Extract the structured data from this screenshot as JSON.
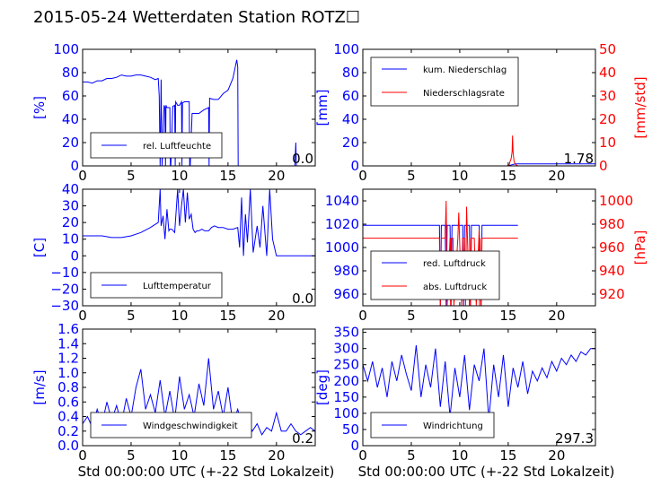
{
  "page": {
    "title": "2015-05-24 Wetterdaten Station ROTZ☐",
    "xlabel_bottom": "Std 00:00:00 UTC (+-22 Std Lokalzeit)"
  },
  "colors": {
    "blue": "#0000ff",
    "red": "#ff0000",
    "axes": "#000000",
    "background": "#ffffff"
  },
  "chart_data": [
    {
      "id": "humidity",
      "type": "line",
      "ylabel": "[%]",
      "xlim": [
        0,
        24
      ],
      "ylim": [
        0,
        100
      ],
      "xticks": [
        "0",
        "5",
        "10",
        "15",
        "20"
      ],
      "xtick_values": [
        0,
        5,
        10,
        15,
        20
      ],
      "yticks": [
        "0",
        "20",
        "40",
        "60",
        "80",
        "100"
      ],
      "ytick_values": [
        0,
        20,
        40,
        60,
        80,
        100
      ],
      "legend": [
        "rel. Luftfeuchte"
      ],
      "legend_position": "bottom-left",
      "annotation": "0.0",
      "series": [
        {
          "axis": "left",
          "color": "#0000ff",
          "x": [
            0,
            0.5,
            1,
            1.5,
            2,
            2.5,
            3,
            3.5,
            4,
            4.5,
            5,
            5.5,
            6,
            6.5,
            7,
            7.5,
            7.8,
            7.9,
            8.0,
            8.1,
            8.2,
            8.4,
            8.5,
            8.55,
            8.6,
            8.7,
            9.0,
            9.05,
            9.1,
            9.3,
            9.5,
            9.55,
            9.6,
            9.8,
            10.0,
            10.2,
            10.25,
            10.3,
            10.5,
            10.7,
            11.0,
            11.05,
            11.1,
            11.3,
            11.5,
            11.8,
            12.0,
            12.5,
            13.0,
            13.05,
            13.1,
            13.5,
            14.0,
            14.5,
            15.0,
            15.5,
            15.9,
            16.0,
            16.05,
            16.1,
            17,
            18,
            19,
            20,
            21,
            21.9,
            22.0,
            22.05,
            22.1,
            23,
            24
          ],
          "y": [
            72,
            72,
            71,
            73,
            73,
            75,
            75,
            76,
            78,
            77,
            77,
            78,
            78,
            77,
            76,
            74,
            75,
            60,
            0,
            74,
            0,
            52,
            50,
            0,
            52,
            50,
            50,
            0,
            0,
            51,
            52,
            0,
            55,
            52,
            52,
            55,
            0,
            54,
            55,
            55,
            55,
            0,
            0,
            45,
            45,
            45,
            45,
            48,
            50,
            0,
            58,
            57,
            57,
            62,
            65,
            75,
            91,
            85,
            0,
            0,
            0,
            0,
            0,
            0,
            0,
            0,
            20,
            0,
            0,
            0,
            0
          ]
        }
      ]
    },
    {
      "id": "precipitation",
      "type": "line",
      "ylabel": "[mm]",
      "ylabel_right": "[mm/std]",
      "xlim": [
        0,
        24
      ],
      "ylim": [
        0,
        100
      ],
      "ylim_right": [
        0,
        50
      ],
      "xticks": [
        "0",
        "5",
        "10",
        "15",
        "20"
      ],
      "xtick_values": [
        0,
        5,
        10,
        15,
        20
      ],
      "yticks": [
        "0",
        "20",
        "40",
        "60",
        "80",
        "100"
      ],
      "ytick_values": [
        0,
        20,
        40,
        60,
        80,
        100
      ],
      "yticks_right": [
        "0",
        "10",
        "20",
        "30",
        "40",
        "50"
      ],
      "ytick_values_right": [
        0,
        10,
        20,
        30,
        40,
        50
      ],
      "legend": [
        "kum. Niederschlag",
        "Niederschlagsrate"
      ],
      "legend_position": "top-left",
      "annotation": "1.78",
      "series": [
        {
          "name": "kum. Niederschlag",
          "axis": "left",
          "color": "#0000ff",
          "x": [
            0,
            15,
            15.2,
            15.4,
            15.6,
            15.8,
            24
          ],
          "y": [
            0,
            0,
            0.5,
            1.0,
            1.5,
            1.78,
            1.78
          ]
        },
        {
          "name": "Niederschlagsrate",
          "axis": "right",
          "color": "#ff0000",
          "x": [
            0,
            14.9,
            15.1,
            15.2,
            15.3,
            15.4,
            15.45,
            15.5,
            15.55,
            15.6,
            15.7,
            15.8,
            16.0,
            24
          ],
          "y": [
            0,
            0,
            0.5,
            2,
            3,
            6,
            13,
            6,
            4,
            2,
            1,
            0.5,
            0,
            0
          ]
        }
      ]
    },
    {
      "id": "temperature",
      "type": "line",
      "ylabel": "[C]",
      "xlim": [
        0,
        24
      ],
      "ylim": [
        -30,
        40
      ],
      "xticks": [
        "0",
        "5",
        "10",
        "15",
        "20"
      ],
      "xtick_values": [
        0,
        5,
        10,
        15,
        20
      ],
      "yticks": [
        "−30",
        "−20",
        "−10",
        "0",
        "10",
        "20",
        "30",
        "40"
      ],
      "ytick_values": [
        -30,
        -20,
        -10,
        0,
        10,
        20,
        30,
        40
      ],
      "legend": [
        "Lufttemperatur"
      ],
      "legend_position": "bottom-left",
      "annotation": "0.0",
      "series": [
        {
          "axis": "left",
          "color": "#0000ff",
          "x": [
            0,
            1,
            2,
            3,
            4,
            5,
            6,
            7,
            7.8,
            8.0,
            8.1,
            8.3,
            8.5,
            8.7,
            8.9,
            9.0,
            9.2,
            9.5,
            9.8,
            10.0,
            10.2,
            10.4,
            10.6,
            10.8,
            11.0,
            11.2,
            11.4,
            11.6,
            11.8,
            12.0,
            12.3,
            12.6,
            13.0,
            13.3,
            13.6,
            14.0,
            14.5,
            15.0,
            15.5,
            16.0,
            16.2,
            16.4,
            16.6,
            16.8,
            17.0,
            17.3,
            17.6,
            18.0,
            18.3,
            18.6,
            19.0,
            19.3,
            19.6,
            20.0,
            20.5,
            21.0,
            22,
            23,
            24
          ],
          "y": [
            12,
            12,
            12,
            11,
            11,
            12,
            14,
            17,
            20,
            40,
            18,
            24,
            10,
            28,
            15,
            16,
            16,
            14,
            40,
            18,
            30,
            40,
            20,
            38,
            22,
            25,
            16,
            14,
            15,
            15,
            16,
            15,
            15,
            17,
            18,
            17,
            17,
            16,
            16,
            17,
            5,
            35,
            0,
            25,
            8,
            40,
            2,
            18,
            5,
            30,
            0,
            40,
            10,
            0,
            0,
            0,
            0,
            0,
            0
          ]
        }
      ]
    },
    {
      "id": "pressure",
      "type": "line",
      "ylabel_right": "[hPa]",
      "xlim": [
        0,
        24
      ],
      "ylim": [
        950,
        1050
      ],
      "ylim_right": [
        910,
        1010
      ],
      "xticks": [
        "0",
        "5",
        "10",
        "15",
        "20"
      ],
      "xtick_values": [
        0,
        5,
        10,
        15,
        20
      ],
      "yticks": [
        "960",
        "980",
        "1000",
        "1020",
        "1040"
      ],
      "ytick_values": [
        960,
        980,
        1000,
        1020,
        1040
      ],
      "yticks_right": [
        "920",
        "940",
        "960",
        "980",
        "1000"
      ],
      "ytick_values_right": [
        920,
        940,
        960,
        980,
        1000
      ],
      "legend": [
        "red. Luftdruck",
        "abs. Luftdruck"
      ],
      "legend_position": "bottom-left",
      "series": [
        {
          "name": "red. Luftdruck",
          "axis": "left",
          "color": "#0000ff",
          "x": [
            0,
            7.9,
            8.0,
            8.1,
            8.5,
            8.6,
            8.7,
            9.0,
            9.1,
            9.2,
            10.3,
            10.4,
            10.5,
            11.0,
            11.1,
            11.2,
            12.0,
            12.2,
            12.3,
            12.5,
            13.0,
            16.0
          ],
          "y": [
            1019,
            1019,
            950,
            1019,
            1019,
            950,
            1019,
            1019,
            950,
            1019,
            1019,
            950,
            1019,
            1019,
            950,
            1019,
            1019,
            950,
            1019,
            1019,
            1019,
            1019
          ]
        },
        {
          "name": "abs. Luftdruck",
          "axis": "right",
          "color": "#ff0000",
          "x": [
            0,
            7.9,
            8.0,
            8.1,
            8.5,
            8.6,
            8.7,
            9.0,
            9.05,
            9.1,
            9.3,
            9.4,
            9.8,
            9.9,
            10.2,
            10.3,
            10.5,
            10.6,
            10.7,
            11.0,
            11.05,
            11.1,
            11.2,
            11.5,
            11.7,
            12.0,
            12.05,
            12.1,
            12.2,
            12.3,
            12.5,
            16.0
          ],
          "y": [
            968,
            968,
            910,
            968,
            968,
            1000,
            910,
            968,
            910,
            968,
            968,
            910,
            968,
            990,
            910,
            968,
            968,
            910,
            995,
            910,
            968,
            910,
            968,
            968,
            910,
            975,
            910,
            968,
            910,
            968,
            968,
            968
          ]
        }
      ]
    },
    {
      "id": "wind_speed",
      "type": "line",
      "ylabel": "[m/s]",
      "xlabel": "Std 00:00:00 UTC (+-22 Std Lokalzeit)",
      "xlim": [
        0,
        24
      ],
      "ylim": [
        0,
        1.6
      ],
      "xticks": [
        "0",
        "5",
        "10",
        "15",
        "20"
      ],
      "xtick_values": [
        0,
        5,
        10,
        15,
        20
      ],
      "yticks": [
        "0.0",
        "0.2",
        "0.4",
        "0.6",
        "0.8",
        "1.0",
        "1.2",
        "1.4",
        "1.6"
      ],
      "ytick_values": [
        0,
        0.2,
        0.4,
        0.6,
        0.8,
        1.0,
        1.2,
        1.4,
        1.6
      ],
      "legend": [
        "Windgeschwindigkeit"
      ],
      "legend_position": "bottom-center",
      "annotation": "0.2",
      "series": [
        {
          "axis": "left",
          "color": "#0000ff",
          "x": [
            0,
            0.5,
            1,
            1.5,
            2,
            2.5,
            3,
            3.5,
            4,
            4.5,
            5,
            5.5,
            6,
            6.5,
            7,
            7.5,
            8,
            8.5,
            9,
            9.5,
            10,
            10.5,
            11,
            11.5,
            12,
            12.5,
            13,
            13.5,
            14,
            14.5,
            15,
            15.5,
            16,
            16.5,
            17,
            17.5,
            18,
            18.5,
            19,
            19.5,
            20,
            20.5,
            21,
            21.5,
            22,
            22.5,
            23,
            23.5,
            24
          ],
          "y": [
            0.3,
            0.4,
            0.25,
            0.5,
            0.3,
            0.6,
            0.35,
            0.55,
            0.3,
            0.65,
            0.4,
            0.8,
            1.05,
            0.5,
            0.7,
            0.45,
            0.9,
            0.4,
            0.75,
            0.35,
            0.95,
            0.5,
            0.7,
            0.4,
            0.85,
            0.55,
            1.2,
            0.5,
            0.75,
            0.4,
            0.8,
            0.3,
            0.5,
            0.25,
            0.35,
            0.2,
            0.3,
            0.15,
            0.25,
            0.2,
            0.45,
            0.2,
            0.2,
            0.3,
            0.2,
            0.15,
            0.2,
            0.25,
            0.2
          ]
        }
      ]
    },
    {
      "id": "wind_direction",
      "type": "line",
      "ylabel": "[deg]",
      "xlabel": "Std 00:00:00 UTC (+-22 Std Lokalzeit)",
      "xlim": [
        0,
        24
      ],
      "ylim": [
        0,
        360
      ],
      "xticks": [
        "0",
        "5",
        "10",
        "15",
        "20"
      ],
      "xtick_values": [
        0,
        5,
        10,
        15,
        20
      ],
      "yticks": [
        "0",
        "50",
        "100",
        "150",
        "200",
        "250",
        "300",
        "350"
      ],
      "ytick_values": [
        0,
        50,
        100,
        150,
        200,
        250,
        300,
        350
      ],
      "legend": [
        "Windrichtung"
      ],
      "legend_position": "bottom-left",
      "annotation": "297.3",
      "series": [
        {
          "axis": "left",
          "color": "#0000ff",
          "x": [
            0,
            0.5,
            1,
            1.5,
            2,
            2.5,
            3,
            3.5,
            4,
            4.5,
            5,
            5.5,
            6,
            6.5,
            7,
            7.5,
            8,
            8.5,
            9,
            9.5,
            10,
            10.5,
            11,
            11.5,
            12,
            12.5,
            13,
            13.5,
            14,
            14.5,
            15,
            15.5,
            16,
            16.5,
            17,
            17.5,
            18,
            18.5,
            19,
            19.5,
            20,
            20.5,
            21,
            21.5,
            22,
            22.5,
            23,
            23.5,
            24
          ],
          "y": [
            250,
            200,
            260,
            180,
            240,
            150,
            260,
            200,
            280,
            220,
            170,
            310,
            150,
            250,
            180,
            300,
            120,
            260,
            90,
            240,
            150,
            280,
            110,
            250,
            200,
            300,
            80,
            250,
            150,
            280,
            120,
            240,
            180,
            260,
            160,
            230,
            200,
            240,
            210,
            260,
            230,
            270,
            250,
            280,
            260,
            290,
            280,
            300,
            300
          ]
        }
      ]
    }
  ]
}
